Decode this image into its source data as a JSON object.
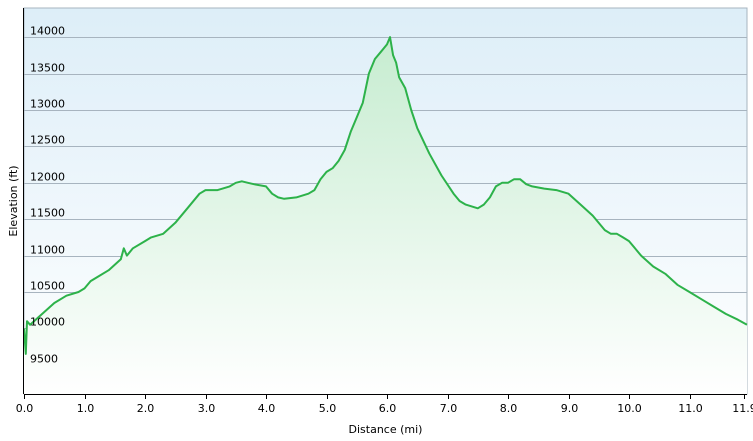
{
  "chart_data": {
    "type": "area",
    "title": "",
    "xlabel": "Distance  (mi)",
    "ylabel": "Elevation (ft)",
    "xlim": [
      0,
      11.95
    ],
    "ylim": [
      9100,
      14400
    ],
    "xticks": [
      {
        "value": 0.0,
        "label": "0.0"
      },
      {
        "value": 1.0,
        "label": "1.0"
      },
      {
        "value": 2.0,
        "label": "2.0"
      },
      {
        "value": 3.0,
        "label": "3.0"
      },
      {
        "value": 4.0,
        "label": "4.0"
      },
      {
        "value": 5.0,
        "label": "5.0"
      },
      {
        "value": 6.0,
        "label": "6.0"
      },
      {
        "value": 7.0,
        "label": "7.0"
      },
      {
        "value": 8.0,
        "label": "8.0"
      },
      {
        "value": 9.0,
        "label": "9.0"
      },
      {
        "value": 10.0,
        "label": "10.0"
      },
      {
        "value": 11.0,
        "label": "11.0"
      },
      {
        "value": 11.9,
        "label": "11.9"
      }
    ],
    "yticks": [
      9500,
      10000,
      10500,
      11000,
      11500,
      12000,
      12500,
      13000,
      13500,
      14000
    ],
    "grid": {
      "horizontal": true,
      "vertical": false
    },
    "colors": {
      "line": "#2db24a",
      "fill_top": "#c6ecd0",
      "fill_bottom": "#ffffff",
      "plot_bg_top": "#ddeef8",
      "plot_bg_bottom": "#ffffff",
      "grid": "#a7b4bf"
    },
    "series": [
      {
        "x": [
          0.0,
          0.03,
          0.05,
          0.1,
          0.3,
          0.5,
          0.7,
          0.9,
          1.0,
          1.1,
          1.2,
          1.4,
          1.6,
          1.65,
          1.7,
          1.8,
          2.0,
          2.1,
          2.3,
          2.5,
          2.7,
          2.9,
          3.0,
          3.2,
          3.4,
          3.5,
          3.6,
          3.7,
          3.8,
          4.0,
          4.1,
          4.2,
          4.3,
          4.5,
          4.7,
          4.8,
          4.9,
          5.0,
          5.1,
          5.2,
          5.3,
          5.4,
          5.5,
          5.6,
          5.7,
          5.8,
          5.9,
          6.0,
          6.05,
          6.1,
          6.15,
          6.2,
          6.3,
          6.4,
          6.5,
          6.7,
          6.9,
          7.1,
          7.2,
          7.3,
          7.5,
          7.6,
          7.7,
          7.8,
          7.9,
          8.0,
          8.1,
          8.2,
          8.3,
          8.4,
          8.6,
          8.8,
          9.0,
          9.2,
          9.4,
          9.6,
          9.7,
          9.8,
          9.9,
          10.0,
          10.2,
          10.4,
          10.6,
          10.8,
          11.0,
          11.2,
          11.4,
          11.6,
          11.8,
          11.95
        ],
        "y": [
          10000,
          9650,
          10100,
          10050,
          10200,
          10350,
          10450,
          10500,
          10550,
          10650,
          10700,
          10800,
          10950,
          11100,
          11000,
          11100,
          11200,
          11250,
          11300,
          11450,
          11650,
          11850,
          11900,
          11900,
          11950,
          12000,
          12020,
          12000,
          11980,
          11950,
          11850,
          11800,
          11780,
          11800,
          11850,
          11900,
          12050,
          12150,
          12200,
          12300,
          12450,
          12700,
          12900,
          13100,
          13500,
          13700,
          13800,
          13900,
          14000,
          13750,
          13650,
          13450,
          13300,
          13000,
          12750,
          12400,
          12100,
          11850,
          11750,
          11700,
          11650,
          11700,
          11800,
          11950,
          12000,
          12000,
          12050,
          12050,
          11980,
          11950,
          11920,
          11900,
          11850,
          11700,
          11550,
          11350,
          11300,
          11300,
          11250,
          11200,
          11000,
          10850,
          10750,
          10600,
          10500,
          10400,
          10300,
          10200,
          10120,
          10050
        ]
      }
    ]
  }
}
